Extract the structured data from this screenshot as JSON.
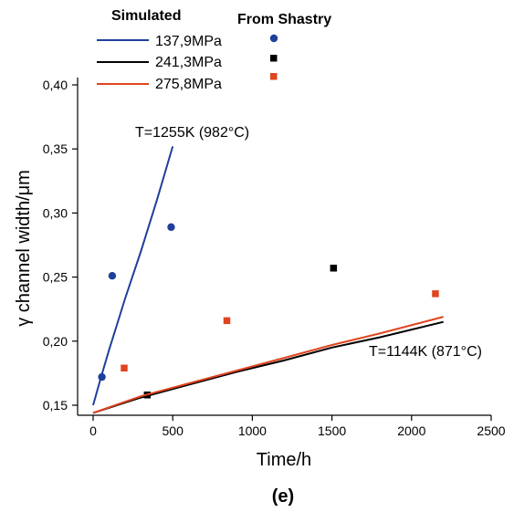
{
  "chart_data": {
    "type": "line",
    "subplot_label": "(e)",
    "xlabel": "Time/h",
    "ylabel": "γ channel width/μm",
    "xlim": [
      0,
      2500
    ],
    "ylim": [
      0.14,
      0.4
    ],
    "xticks": [
      0,
      500,
      1000,
      1500,
      2000,
      2500
    ],
    "xtick_labels": [
      "0",
      "500",
      "1000",
      "1500",
      "2000",
      "2500"
    ],
    "yticks": [
      0.15,
      0.2,
      0.25,
      0.3,
      0.35,
      0.4
    ],
    "ytick_labels": [
      "0,15",
      "0,20",
      "0,25",
      "0,30",
      "0,35",
      "0,40"
    ],
    "grid": false,
    "legend": {
      "placement": "top-left",
      "simulated_title": "Simulated",
      "observed_title": "From Shastry"
    },
    "annotations": [
      {
        "text": "T=1255K (982°C)",
        "x": 980,
        "y": 0.357
      },
      {
        "text": "T=1144K (871°C)",
        "x": 1840,
        "y": 0.185
      }
    ],
    "series": [
      {
        "name": "137,9MPa",
        "color": "#1f3f9a",
        "line": {
          "x": [
            0,
            50,
            100,
            150,
            200,
            300,
            400,
            500
          ],
          "y": [
            0.15,
            0.172,
            0.193,
            0.213,
            0.233,
            0.27,
            0.31,
            0.352
          ]
        },
        "points": {
          "marker": "circle",
          "x": [
            55,
            120,
            490
          ],
          "y": [
            0.172,
            0.251,
            0.289
          ]
        }
      },
      {
        "name": "241,3MPa",
        "color": "#000000",
        "line": {
          "x": [
            0,
            300,
            600,
            900,
            1200,
            1500,
            1800,
            2200
          ],
          "y": [
            0.144,
            0.156,
            0.166,
            0.176,
            0.185,
            0.195,
            0.203,
            0.215
          ]
        },
        "points": {
          "marker": "square",
          "x": [
            340,
            1510
          ],
          "y": [
            0.158,
            0.257
          ]
        }
      },
      {
        "name": "275,8MPa",
        "color": "#e0451f",
        "line": {
          "x": [
            0,
            300,
            600,
            900,
            1200,
            1500,
            1800,
            2200
          ],
          "y": [
            0.144,
            0.157,
            0.167,
            0.177,
            0.187,
            0.197,
            0.206,
            0.219
          ]
        },
        "points": {
          "marker": "square",
          "x": [
            195,
            840,
            2150
          ],
          "y": [
            0.179,
            0.216,
            0.237
          ]
        }
      }
    ]
  }
}
